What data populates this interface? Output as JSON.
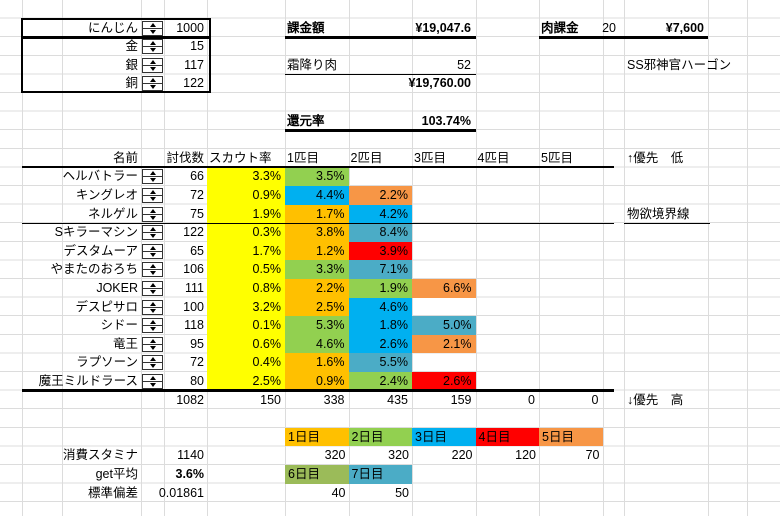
{
  "colors": {
    "yellow": "#FFFF00",
    "green": "#92D050",
    "cyan": "#00B0F0",
    "gold": "#FFC000",
    "orange": "#F79646",
    "teal": "#4BACC6",
    "red": "#FF0000",
    "olive": "#9BBB59"
  },
  "top_left": {
    "rows": [
      {
        "label": "にんじん",
        "value": "1000"
      },
      {
        "label": "金",
        "value": "15"
      },
      {
        "label": "銀",
        "value": "117"
      },
      {
        "label": "銅",
        "value": "122"
      }
    ]
  },
  "billing": {
    "label": "課金額",
    "amount": "¥19,047.6",
    "meat_label": "霜降り肉",
    "meat_count": "52",
    "meat_total": "¥19,760.00",
    "rate_label": "還元率",
    "rate_value": "103.74%"
  },
  "meat": {
    "label": "肉課金",
    "count": "20",
    "amount": "¥7,600",
    "note": "SS邪神官ハーゴン"
  },
  "table": {
    "headers": {
      "name": "名前",
      "kills": "討伐数",
      "scout": "スカウト率",
      "slots": [
        "1匹目",
        "2匹目",
        "3匹目",
        "4匹目",
        "5匹目"
      ]
    },
    "annotations": {
      "low": "↑優先　低",
      "boundary": "物欲境界線",
      "high": "↓優先　高"
    },
    "monsters": [
      {
        "name": "ヘルバトラー",
        "kills": "66",
        "scout": "3.3%",
        "slots": [
          {
            "value": "3.5%",
            "color": "green"
          }
        ]
      },
      {
        "name": "キングレオ",
        "kills": "72",
        "scout": "0.9%",
        "slots": [
          {
            "value": "4.4%",
            "color": "cyan"
          },
          {
            "value": "2.2%",
            "color": "orange"
          }
        ]
      },
      {
        "name": "ネルゲル",
        "kills": "75",
        "scout": "1.9%",
        "slots": [
          {
            "value": "1.7%",
            "color": "gold"
          },
          {
            "value": "4.2%",
            "color": "cyan"
          }
        ]
      },
      {
        "name": "Sキラーマシン",
        "kills": "122",
        "scout": "0.3%",
        "slots": [
          {
            "value": "3.8%",
            "color": "gold"
          },
          {
            "value": "8.4%",
            "color": "teal"
          }
        ]
      },
      {
        "name": "デスタムーア",
        "kills": "65",
        "scout": "1.7%",
        "slots": [
          {
            "value": "1.2%",
            "color": "gold"
          },
          {
            "value": "3.9%",
            "color": "red"
          }
        ]
      },
      {
        "name": "やまたのおろち",
        "kills": "106",
        "scout": "0.5%",
        "slots": [
          {
            "value": "3.3%",
            "color": "green"
          },
          {
            "value": "7.1%",
            "color": "teal"
          }
        ]
      },
      {
        "name": "JOKER",
        "kills": "111",
        "scout": "0.8%",
        "slots": [
          {
            "value": "2.2%",
            "color": "gold"
          },
          {
            "value": "1.9%",
            "color": "green"
          },
          {
            "value": "6.6%",
            "color": "orange"
          }
        ]
      },
      {
        "name": "デスピサロ",
        "kills": "100",
        "scout": "3.2%",
        "slots": [
          {
            "value": "2.5%",
            "color": "gold"
          },
          {
            "value": "4.6%",
            "color": "cyan"
          }
        ]
      },
      {
        "name": "シドー",
        "kills": "118",
        "scout": "0.1%",
        "slots": [
          {
            "value": "5.3%",
            "color": "green"
          },
          {
            "value": "1.8%",
            "color": "cyan"
          },
          {
            "value": "5.0%",
            "color": "teal"
          }
        ]
      },
      {
        "name": "竜王",
        "kills": "95",
        "scout": "0.6%",
        "slots": [
          {
            "value": "4.6%",
            "color": "green"
          },
          {
            "value": "2.6%",
            "color": "cyan"
          },
          {
            "value": "2.1%",
            "color": "orange"
          }
        ]
      },
      {
        "name": "ラプソーン",
        "kills": "72",
        "scout": "0.4%",
        "slots": [
          {
            "value": "1.6%",
            "color": "gold"
          },
          {
            "value": "5.5%",
            "color": "teal"
          }
        ]
      },
      {
        "name": "魔王ミルドラース",
        "kills": "80",
        "scout": "2.5%",
        "slots": [
          {
            "value": "0.9%",
            "color": "gold"
          },
          {
            "value": "2.4%",
            "color": "green"
          },
          {
            "value": "2.6%",
            "color": "red"
          }
        ]
      }
    ],
    "totals": {
      "kills": "1082",
      "scout": "150",
      "slots": [
        "338",
        "435",
        "159",
        "0",
        "0"
      ]
    }
  },
  "days": {
    "headers": [
      {
        "label": "1日目",
        "color": "gold"
      },
      {
        "label": "2日目",
        "color": "green"
      },
      {
        "label": "3日目",
        "color": "cyan"
      },
      {
        "label": "4日目",
        "color": "red"
      },
      {
        "label": "5日目",
        "color": "orange"
      }
    ],
    "values": [
      "320",
      "320",
      "220",
      "120",
      "70"
    ],
    "headers2": [
      {
        "label": "6日目",
        "color": "olive"
      },
      {
        "label": "7日目",
        "color": "teal"
      }
    ],
    "values2": [
      "40",
      "50"
    ]
  },
  "stats": {
    "rows": [
      {
        "label": "消費スタミナ",
        "value": "1140",
        "bold": false
      },
      {
        "label": "get平均",
        "value": "3.6%",
        "bold": true
      },
      {
        "label": "標準偏差",
        "value": "0.01861",
        "bold": false
      }
    ]
  }
}
